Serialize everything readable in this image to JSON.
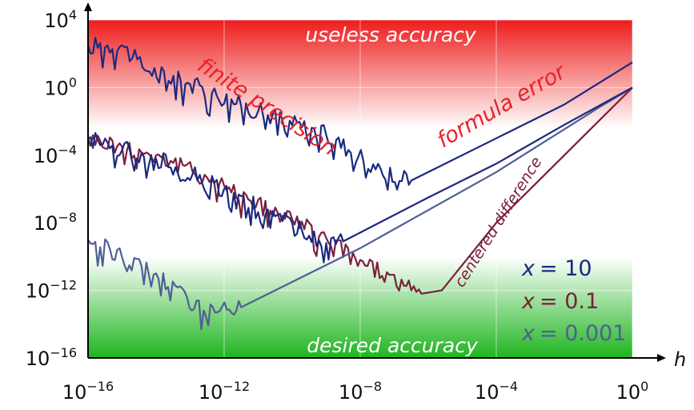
{
  "chart_data": {
    "type": "line",
    "title": "",
    "xlabel": "h",
    "ylabel": "",
    "xscale": "log",
    "yscale": "log",
    "xlim_exp": [
      -16,
      0
    ],
    "ylim_exp": [
      -16,
      4
    ],
    "grid": true,
    "x_ticks": [
      {
        "base": "10",
        "exp": "−16",
        "value_exp": -16
      },
      {
        "base": "10",
        "exp": "−12",
        "value_exp": -12
      },
      {
        "base": "10",
        "exp": "−8",
        "value_exp": -8
      },
      {
        "base": "10",
        "exp": "−4",
        "value_exp": -4
      },
      {
        "base": "10",
        "exp": "0",
        "value_exp": 0
      }
    ],
    "y_ticks": [
      {
        "base": "10",
        "exp": "4",
        "value_exp": 4
      },
      {
        "base": "10",
        "exp": "0",
        "value_exp": 0
      },
      {
        "base": "10",
        "exp": "−4",
        "value_exp": -4
      },
      {
        "base": "10",
        "exp": "−8",
        "value_exp": -8
      },
      {
        "base": "10",
        "exp": "−12",
        "value_exp": -12
      },
      {
        "base": "10",
        "exp": "−16",
        "value_exp": -16
      }
    ],
    "background_bands": {
      "top_color": "#ee1c1c",
      "bottom_color": "#1db51d",
      "top_label": "useless accuracy",
      "bottom_label": "desired accuracy"
    },
    "annotations": [
      {
        "id": "finite",
        "text": "finite precision",
        "color": "#e8232a"
      },
      {
        "id": "formula",
        "text": "formula error",
        "color": "#e8232a"
      },
      {
        "id": "centered",
        "text": "centered difference",
        "color": "#7a1f3d"
      }
    ],
    "legend_position": "bottom-right",
    "series": [
      {
        "name": "x = 10",
        "label_lhs": "x",
        "label_rhs": "= 10",
        "color": "#1a2a80",
        "kind": "forward",
        "points_log10": [
          [
            -16,
            2.5
          ],
          [
            -15.0,
            2.5
          ],
          [
            -14.4,
            1.2
          ],
          [
            -13.0,
            0.2
          ],
          [
            -11.0,
            -1.4
          ],
          [
            -9.0,
            -2.8
          ],
          [
            -7.4,
            -4.8
          ],
          [
            -6.5,
            -5.5
          ],
          [
            -6.0,
            -5.0
          ],
          [
            -4.0,
            -3.0
          ],
          [
            -2.0,
            -1.0
          ],
          [
            0,
            1.5
          ]
        ]
      },
      {
        "name": "x = 0.1",
        "label_lhs": "x",
        "label_rhs": "= 0.1",
        "color": "#7a1f3d",
        "kind": "centered",
        "points_log10": [
          [
            -16,
            -3.0
          ],
          [
            -14.0,
            -4.0
          ],
          [
            -12.0,
            -5.8
          ],
          [
            -10.0,
            -7.8
          ],
          [
            -8.0,
            -10.2
          ],
          [
            -6.5,
            -12.0
          ],
          [
            -6.2,
            -12.2
          ],
          [
            -5.6,
            -12.0
          ],
          [
            -4.0,
            -8.0
          ],
          [
            -2.0,
            -4.0
          ],
          [
            0,
            0
          ]
        ]
      },
      {
        "name": "x = 0.001",
        "label_lhs": "x",
        "label_rhs": "= 0.001",
        "color": "#4f5f95",
        "kind": "forward",
        "points_log10": [
          [
            -16,
            -9.0
          ],
          [
            -14.0,
            -11.0
          ],
          [
            -12.6,
            -13.2
          ],
          [
            -12.2,
            -13.3
          ],
          [
            -11.5,
            -13.0
          ],
          [
            -8.0,
            -9.5
          ],
          [
            -4.0,
            -5.0
          ],
          [
            -1.0,
            -1.2
          ],
          [
            0,
            0
          ]
        ]
      },
      {
        "name": "",
        "color": "#1a2a80",
        "kind": "forward-mid",
        "points_log10": [
          [
            -16,
            -3.0
          ],
          [
            -14.0,
            -4.2
          ],
          [
            -12.0,
            -6.0
          ],
          [
            -10.0,
            -8.0
          ],
          [
            -9.0,
            -9.2
          ],
          [
            -8.5,
            -9.1
          ],
          [
            -6.0,
            -6.5
          ],
          [
            -4.0,
            -4.5
          ],
          [
            -2.0,
            -2.2
          ],
          [
            0,
            0
          ]
        ]
      }
    ]
  }
}
